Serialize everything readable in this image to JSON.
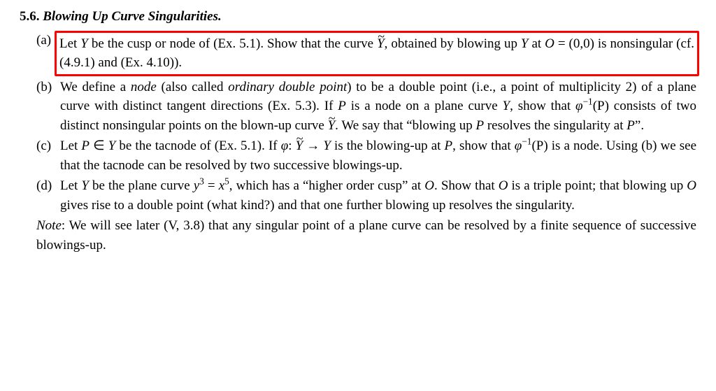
{
  "section": {
    "number": "5.6.",
    "title": "Blowing Up Curve Singularities."
  },
  "colors": {
    "highlight_border": "#ff0000",
    "text": "#000000",
    "background": "#ffffff"
  },
  "typography": {
    "font_family": "Times New Roman",
    "body_fontsize_pt": 14,
    "line_height": 1.45
  },
  "items": {
    "a": {
      "marker": "(a)",
      "text_pre": "Let ",
      "Y": "Y",
      "text_mid1": " be the cusp or node of (Ex. 5.1). Show that the curve ",
      "Ytilde": "Y",
      "text_mid2": ", obtained by blowing up ",
      "Y2": "Y",
      "text_mid3": " at ",
      "O": "O",
      "eq": " = (0,0) is nonsingular (cf. (4.9.1) and (Ex. 4.10)).",
      "highlighted": true
    },
    "b": {
      "marker": "(b)",
      "t1": "We define a ",
      "node": "node",
      "t2": " (also called ",
      "odp": "ordinary double point",
      "t3": ") to be a double point (i.e., a point of multiplicity 2) of a plane curve with distinct tangent directions (Ex. 5.3). If ",
      "P": "P",
      "t4": " is a node on a plane curve ",
      "Y": "Y",
      "t5": ", show that ",
      "phiinv": "φ",
      "sup": "−1",
      "P2": "(P)",
      "t6": " consists of two distinct nonsingular points on the blown-up curve ",
      "Ytilde": "Y",
      "t7": ". We say that “blowing up ",
      "P3": "P",
      "t8": " resolves the singularity at ",
      "P4": "P",
      "t9": "”."
    },
    "c": {
      "marker": "(c)",
      "t1": "Let ",
      "P": "P",
      "in": " ∈ ",
      "Y": "Y",
      "t2": " be the tacnode of (Ex. 5.1). If ",
      "phi": "φ",
      "colon": ": ",
      "Ytilde": "Y",
      "arrow": " → ",
      "Y2": "Y",
      "t3": " is the blowing-up at ",
      "P2": "P",
      "t4": ", show that ",
      "phi2": "φ",
      "sup": "−1",
      "P3": "(P)",
      "t5": " is a node. Using (b) we see that the tacnode can be resolved by two successive blowings-up."
    },
    "d": {
      "marker": "(d)",
      "t1": "Let ",
      "Y": "Y",
      "t2": " be the plane curve ",
      "eq_lhs": "y",
      "eq_lhs_sup": "3",
      "eq_mid": " = ",
      "eq_rhs": "x",
      "eq_rhs_sup": "5",
      "t3": ", which has a “higher order cusp” at ",
      "O": "O",
      "t4": ". Show that ",
      "O2": "O",
      "t5": " is a triple point; that blowing up ",
      "O3": "O",
      "t6": " gives rise to a double point (what kind?) and that one further blowing up resolves the singularity."
    }
  },
  "note": {
    "label": "Note",
    "text": ": We will see later (V, 3.8) that any singular point of a plane curve can be resolved by a finite sequence of successive blowings-up."
  }
}
